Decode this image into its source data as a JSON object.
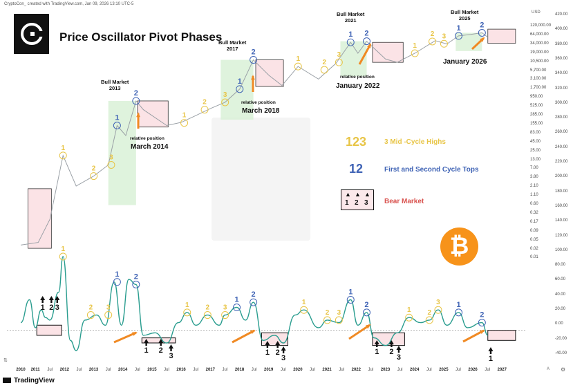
{
  "header": {
    "text": "CryptoCon_ created with TradingView.com, Jan 09, 2026 13:10 UTC-5"
  },
  "title": "Price Oscillator Pivot Phases",
  "footer": {
    "brand": "TradingView"
  },
  "colors": {
    "yellow": "#e8c547",
    "blue": "#3f63b5",
    "red": "#d9534f",
    "green_zone": "#d7f0d4",
    "pink_box": "#fbe3e6",
    "line": "#2a9d8f",
    "price": "#9aa0a6",
    "arrow": "#f08a24",
    "btc": "#f7931a"
  },
  "axis": {
    "unit": "USD",
    "price_labels": [
      "120,000.00",
      "64,000.00",
      "34,000.00",
      "19,000.00",
      "10,500.00",
      "5,700.00",
      "3,100.00",
      "1,700.00",
      "950.00",
      "525.00",
      "285.00",
      "155.00",
      "83.00",
      "45.00",
      "25.00",
      "13.00",
      "7.00",
      "3.80",
      "2.10",
      "1.10",
      "0.60",
      "0.32",
      "0.17",
      "0.09",
      "0.05",
      "0.02",
      "0.01"
    ],
    "right_labels": [
      "420.00",
      "400.00",
      "380.00",
      "360.00",
      "340.00",
      "320.00",
      "300.00",
      "280.00",
      "260.00",
      "240.00",
      "220.00",
      "200.00",
      "180.00",
      "160.00",
      "140.00",
      "120.00",
      "100.00",
      "80.00",
      "60.00",
      "40.00",
      "20.00",
      "0.00",
      "-20.00",
      "-40.00"
    ],
    "x_labels": [
      {
        "t": "2010",
        "b": true
      },
      {
        "t": "2011",
        "b": true
      },
      {
        "t": "Jul",
        "b": false
      },
      {
        "t": "2012",
        "b": true
      },
      {
        "t": "Jul",
        "b": false
      },
      {
        "t": "2013",
        "b": true
      },
      {
        "t": "Jul",
        "b": false
      },
      {
        "t": "2014",
        "b": true
      },
      {
        "t": "Jul",
        "b": false
      },
      {
        "t": "2015",
        "b": true
      },
      {
        "t": "Jul",
        "b": false
      },
      {
        "t": "2016",
        "b": true
      },
      {
        "t": "Jul",
        "b": false
      },
      {
        "t": "2017",
        "b": true
      },
      {
        "t": "Jul",
        "b": false
      },
      {
        "t": "2018",
        "b": true
      },
      {
        "t": "Jul",
        "b": false
      },
      {
        "t": "2019",
        "b": true
      },
      {
        "t": "Jul",
        "b": false
      },
      {
        "t": "2020",
        "b": true
      },
      {
        "t": "Jul",
        "b": false
      },
      {
        "t": "2021",
        "b": true
      },
      {
        "t": "Jul",
        "b": false
      },
      {
        "t": "2022",
        "b": true
      },
      {
        "t": "Jul",
        "b": false
      },
      {
        "t": "2023",
        "b": true
      },
      {
        "t": "Jul",
        "b": false
      },
      {
        "t": "2024",
        "b": true
      },
      {
        "t": "Jul",
        "b": false
      },
      {
        "t": "2025",
        "b": true
      },
      {
        "t": "Jul",
        "b": false
      },
      {
        "t": "2026",
        "b": true
      },
      {
        "t": "Jul",
        "b": false
      },
      {
        "t": "2027",
        "b": true
      }
    ],
    "x_letter": "A"
  },
  "legend": [
    {
      "symbol": "123",
      "text": "3 Mid -Cycle Highs",
      "color": "#e8c547"
    },
    {
      "symbol": "12",
      "text": "First and Second Cycle Tops",
      "color": "#3f63b5"
    },
    {
      "symbol": "",
      "text": "Bear Market",
      "color": "#d9534f",
      "nums": [
        "1",
        "2",
        "3"
      ]
    }
  ],
  "annotations": [
    {
      "text": "Bull Market\n2013"
    },
    {
      "text": "Bull Market\n2017"
    },
    {
      "text": "Bull Market\n2021"
    },
    {
      "text": "Bull Market\n2025"
    },
    {
      "text": "relative position"
    },
    {
      "text": "March 2014"
    },
    {
      "text": "relative position"
    },
    {
      "text": "March 2018"
    },
    {
      "text": "relative position"
    },
    {
      "text": "January 2022"
    },
    {
      "text": "January 2026"
    }
  ],
  "chart_data": {
    "type": "line",
    "title": "Price Oscillator Pivot Phases",
    "xlabel": "",
    "ylabel": "",
    "x_range": [
      "2010",
      "2027"
    ],
    "series": [
      {
        "values_desc": "BTC price (log scale) 2010-2026",
        "points": [
          [
            2010.0,
            0.05
          ],
          [
            2010.6,
            0.06
          ],
          [
            2011.0,
            0.3
          ],
          [
            2011.45,
            25
          ],
          [
            2011.9,
            3
          ],
          [
            2012.5,
            6
          ],
          [
            2013.0,
            13
          ],
          [
            2013.3,
            200
          ],
          [
            2013.6,
            100
          ],
          [
            2013.95,
            1100
          ],
          [
            2014.2,
            600
          ],
          [
            2015.0,
            200
          ],
          [
            2015.5,
            250
          ],
          [
            2016.0,
            400
          ],
          [
            2016.5,
            650
          ],
          [
            2017.0,
            1000
          ],
          [
            2017.5,
            2500
          ],
          [
            2017.97,
            19000
          ],
          [
            2018.5,
            6500
          ],
          [
            2018.95,
            3200
          ],
          [
            2019.5,
            12000
          ],
          [
            2020.2,
            5000
          ],
          [
            2020.8,
            15000
          ],
          [
            2021.3,
            64000
          ],
          [
            2021.55,
            30000
          ],
          [
            2021.85,
            69000
          ],
          [
            2022.5,
            20000
          ],
          [
            2022.9,
            16000
          ],
          [
            2023.5,
            30000
          ],
          [
            2024.2,
            72000
          ],
          [
            2024.6,
            57000
          ],
          [
            2025.0,
            100000
          ],
          [
            2025.4,
            110000
          ],
          [
            2025.8,
            124000
          ],
          [
            2026.0,
            91000
          ]
        ]
      },
      {
        "values_desc": "Price oscillator",
        "points": [
          [
            2010.0,
            15
          ],
          [
            2010.3,
            60
          ],
          [
            2010.5,
            5
          ],
          [
            2010.7,
            40
          ],
          [
            2010.85,
            25
          ],
          [
            2011.0,
            20
          ],
          [
            2011.3,
            75
          ],
          [
            2011.45,
            145
          ],
          [
            2011.7,
            -20
          ],
          [
            2011.9,
            -40
          ],
          [
            2012.2,
            20
          ],
          [
            2012.6,
            30
          ],
          [
            2012.9,
            10
          ],
          [
            2013.2,
            95
          ],
          [
            2013.45,
            10
          ],
          [
            2013.7,
            100
          ],
          [
            2013.95,
            90
          ],
          [
            2014.2,
            -10
          ],
          [
            2014.6,
            -5
          ],
          [
            2015.0,
            -25
          ],
          [
            2015.4,
            15
          ],
          [
            2015.7,
            35
          ],
          [
            2016.0,
            10
          ],
          [
            2016.4,
            30
          ],
          [
            2016.8,
            10
          ],
          [
            2017.0,
            30
          ],
          [
            2017.4,
            45
          ],
          [
            2017.7,
            20
          ],
          [
            2017.97,
            55
          ],
          [
            2018.3,
            -20
          ],
          [
            2018.7,
            -10
          ],
          [
            2019.0,
            -25
          ],
          [
            2019.4,
            30
          ],
          [
            2019.7,
            40
          ],
          [
            2020.2,
            5
          ],
          [
            2020.5,
            20
          ],
          [
            2020.9,
            15
          ],
          [
            2021.3,
            60
          ],
          [
            2021.55,
            10
          ],
          [
            2021.85,
            35
          ],
          [
            2022.1,
            -15
          ],
          [
            2022.5,
            -30
          ],
          [
            2022.9,
            -5
          ],
          [
            2023.3,
            25
          ],
          [
            2023.7,
            15
          ],
          [
            2024.0,
            20
          ],
          [
            2024.3,
            40
          ],
          [
            2024.6,
            10
          ],
          [
            2025.0,
            35
          ],
          [
            2025.3,
            5
          ],
          [
            2025.8,
            15
          ],
          [
            2026.0,
            -10
          ]
        ]
      }
    ],
    "y_ranges": {
      "price": [
        0.01,
        420000
      ],
      "oscillator": [
        -40,
        160
      ]
    },
    "markers": {
      "yellow_labels": [
        "1",
        "2",
        "3",
        "1",
        "2",
        "3",
        "1",
        "2",
        "3",
        "1",
        "2",
        "3",
        "1",
        "2",
        "3",
        "1",
        "2",
        "3",
        "1",
        "2",
        "3",
        "1",
        "2",
        "3"
      ],
      "blue_labels": [
        "1",
        "2",
        "1",
        "2",
        "1",
        "2",
        "1",
        "2",
        "1",
        "2",
        "1",
        "2",
        "1",
        "2",
        "1",
        "2"
      ],
      "bear_labels": [
        "1",
        "2",
        "3",
        "1",
        "2",
        "3",
        "1",
        "2",
        "3",
        "1",
        "2",
        "3",
        "1"
      ]
    },
    "grid": false,
    "legend_position": "center-right"
  }
}
